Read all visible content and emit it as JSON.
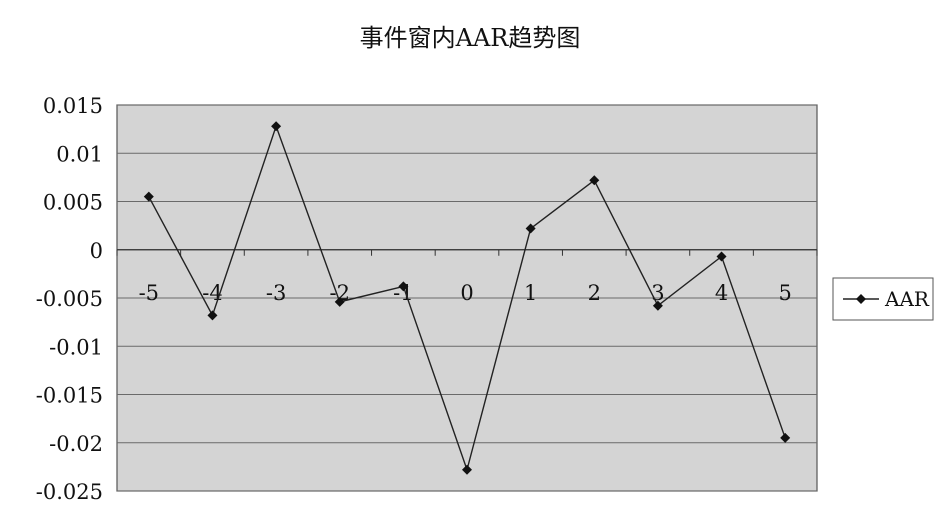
{
  "chart_data": {
    "type": "line",
    "title": "事件窗内AAR趋势图",
    "xlabel": "",
    "ylabel": "",
    "categories": [
      "-5",
      "-4",
      "-3",
      "-2",
      "-1",
      "0",
      "1",
      "2",
      "3",
      "4",
      "5"
    ],
    "series": [
      {
        "name": "AAR",
        "color": "#222222",
        "marker": "diamond",
        "values": [
          0.0055,
          -0.0068,
          0.0128,
          -0.0054,
          -0.0038,
          -0.0228,
          0.0022,
          0.0072,
          -0.0058,
          -0.0007,
          -0.0195
        ]
      }
    ],
    "ylim": [
      -0.025,
      0.015
    ],
    "yticks": [
      0.015,
      0.01,
      0.005,
      0,
      -0.005,
      -0.01,
      -0.015,
      -0.02,
      -0.025
    ],
    "ytick_labels": [
      "0.015",
      "0.01",
      "0.005",
      "0",
      "-0.005",
      "-0.01",
      "-0.015",
      "-0.02",
      "-0.025"
    ],
    "grid": true,
    "legend_position": "right",
    "plot_background": "#d4d4d4"
  }
}
